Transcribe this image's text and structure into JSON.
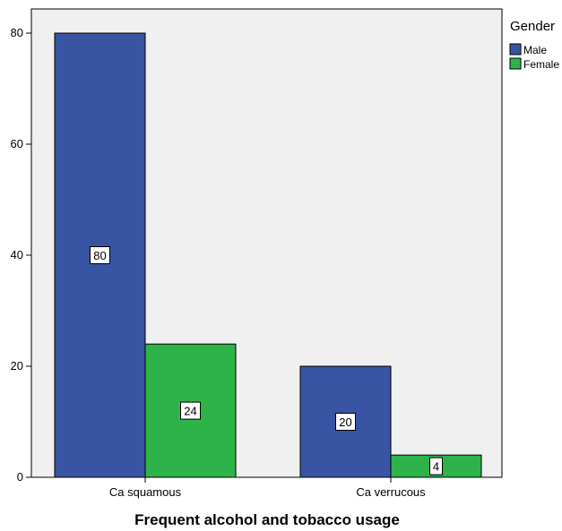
{
  "chart_data": {
    "type": "bar",
    "categories": [
      "Ca squamous",
      "Ca verrucous"
    ],
    "series": [
      {
        "name": "Male",
        "values": [
          80,
          20
        ],
        "color": "#3a54a4"
      },
      {
        "name": "Female",
        "values": [
          24,
          4
        ],
        "color": "#2db34a"
      }
    ],
    "title": "",
    "xlabel": "Frequent alcohol and tobacco usage",
    "ylabel": "",
    "ylim": [
      0,
      80
    ],
    "yticks": [
      0,
      20,
      40,
      60,
      80
    ],
    "data_labels": true,
    "grid": false,
    "legend": {
      "title": "Gender",
      "position": "right"
    },
    "plot_background": "#f0f0f0"
  }
}
